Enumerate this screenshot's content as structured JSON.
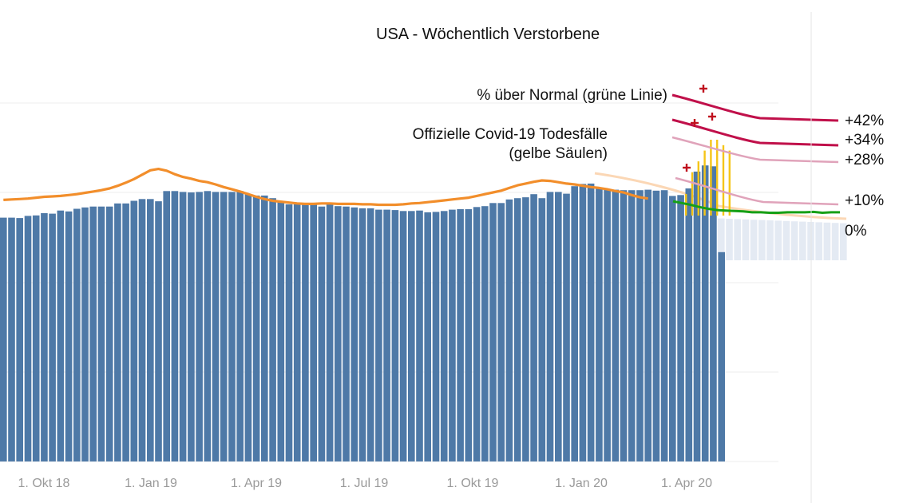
{
  "chart_data": {
    "type": "bar",
    "title": "USA - Wöchentlich Verstorbene",
    "xlabel": "",
    "ylabel": "",
    "x_tick_labels": [
      "1. Okt 18",
      "1. Jan 19",
      "1. Apr 19",
      "1. Jul 19",
      "1. Okt 19",
      "1. Jan 20",
      "1. Apr 20"
    ],
    "y_range": [
      0,
      81000
    ],
    "grid": "horizontal",
    "series": [
      {
        "kind": "bars",
        "color": "#4e79a7",
        "values": [
          55100,
          55100,
          55000,
          55500,
          55600,
          56100,
          56000,
          56700,
          56500,
          57100,
          57400,
          57600,
          57600,
          57600,
          58300,
          58300,
          58900,
          59300,
          59300,
          58800,
          61100,
          61100,
          60900,
          60800,
          60900,
          61100,
          60900,
          60900,
          60900,
          61100,
          60400,
          60100,
          60100,
          59500,
          58700,
          58100,
          58100,
          58100,
          58300,
          57600,
          58100,
          57700,
          57600,
          57400,
          57200,
          57200,
          56900,
          56900,
          56800,
          56600,
          56600,
          56700,
          56300,
          56400,
          56600,
          56900,
          57000,
          57000,
          57500,
          57700,
          58400,
          58400,
          59200,
          59500,
          59700,
          60400,
          59500,
          60900,
          60900,
          60500,
          62200,
          62700,
          62800,
          61900,
          61400,
          61400,
          61300,
          61300,
          61300,
          61400,
          61200,
          61300,
          60000,
          60200,
          61700,
          65500,
          66900,
          66700,
          47300
        ]
      },
      {
        "kind": "line",
        "name": "",
        "color": "#f28e2b",
        "values": [
          59100,
          59200,
          59300,
          59400,
          59600,
          59800,
          59900,
          60000,
          60200,
          60400,
          60700,
          61000,
          61300,
          61700,
          62300,
          63000,
          63800,
          64800,
          65800,
          66100,
          65700,
          64900,
          64300,
          63900,
          63400,
          63100,
          62600,
          62000,
          61500,
          61000,
          60400,
          59800,
          59300,
          58900,
          58700,
          58500,
          58300,
          58200,
          58200,
          58300,
          58300,
          58200,
          58200,
          58200,
          58100,
          58100,
          58000,
          58000,
          58000,
          58100,
          58300,
          58400,
          58600,
          58800,
          59000,
          59200,
          59400,
          59600,
          60000,
          60400,
          60800,
          61200,
          61800,
          62400,
          62800,
          63200,
          63500,
          63400,
          63100,
          62800,
          62600,
          62300,
          62000,
          61800,
          61500,
          61100,
          60800,
          60200,
          59700,
          59400
        ]
      },
      {
        "kind": "line",
        "name": "",
        "color": "#16a016",
        "values": [
          58800,
          58400,
          58000,
          57500,
          57100,
          56800,
          56700,
          56600,
          56500,
          56300,
          56300,
          56200,
          56200,
          56300,
          56300,
          56300,
          56400,
          56200,
          56300,
          56300
        ]
      }
    ],
    "covid_bars": {
      "color": "#f5c518",
      "values": [
        4000,
        8000,
        10000,
        12000,
        14000,
        14000,
        13000,
        12000
      ]
    },
    "reference_lines": [
      {
        "label": "+42%",
        "color": "#c0104a"
      },
      {
        "label": "+34%",
        "color": "#c0104a"
      },
      {
        "label": "+28%",
        "color": "#e0a3ba"
      },
      {
        "label": "+10%",
        "color": "#e0a3ba"
      },
      {
        "label": "0%",
        "color": "#16a016"
      }
    ],
    "annotations": {
      "pct_label": "% über Normal (grüne Linie)",
      "covid_label_line1": "Offizielle Covid-19 Todesfälle",
      "covid_label_line2": "(gelbe Säulen)"
    }
  }
}
